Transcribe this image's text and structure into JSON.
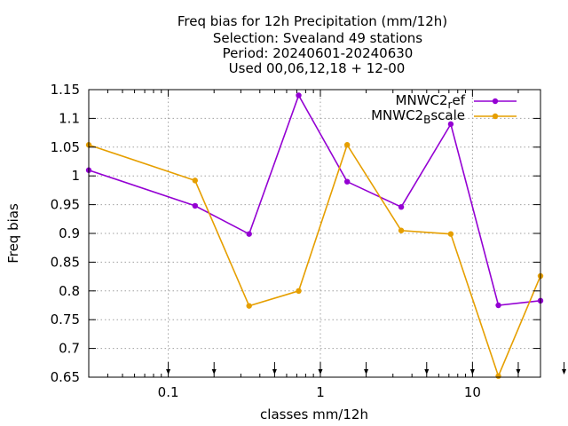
{
  "chart_data": {
    "type": "line",
    "title_lines": [
      "Freq bias  for 12h Precipitation (mm/12h)",
      "Selection: Svealand     49 stations",
      "Period: 20240601-20240630",
      "Used 00,06,12,18 + 12-00"
    ],
    "xlabel": "classes mm/12h",
    "ylabel": "Freq bias",
    "x_scale": "log",
    "xlim": [
      0.03,
      28
    ],
    "ylim": [
      0.65,
      1.15
    ],
    "x_ticks": [
      0.1,
      1,
      10
    ],
    "x_tick_labels": [
      "0.1",
      "1",
      "10"
    ],
    "y_ticks": [
      0.65,
      0.7,
      0.75,
      0.8,
      0.85,
      0.9,
      0.95,
      1,
      1.05,
      1.1,
      1.15
    ],
    "y_tick_labels": [
      "0.65",
      "0.7",
      "0.75",
      "0.8",
      "0.85",
      "0.9",
      "0.95",
      "1",
      "1.05",
      "1.1",
      "1.15"
    ],
    "grid": true,
    "legend_position": "top-right",
    "arrow_markers_x": [
      0.1,
      0.2,
      0.5,
      1,
      2,
      5,
      10,
      20,
      40
    ],
    "series": [
      {
        "name_main": "MNWC2",
        "name_sub": "r",
        "name_tail": "ef",
        "color": "#9400d3",
        "x": [
          0.03,
          0.15,
          0.34,
          0.72,
          1.5,
          3.4,
          7.2,
          14.8,
          28
        ],
        "y": [
          1.01,
          0.948,
          0.899,
          1.14,
          0.99,
          0.946,
          1.09,
          0.775,
          0.783
        ]
      },
      {
        "name_main": "MNWC2",
        "name_sub": "B",
        "name_tail": "scale",
        "color": "#e69f00",
        "x": [
          0.03,
          0.15,
          0.34,
          0.72,
          1.5,
          3.4,
          7.2,
          14.8,
          28
        ],
        "y": [
          1.054,
          0.992,
          0.774,
          0.8,
          1.054,
          0.905,
          0.899,
          0.652,
          0.826
        ]
      }
    ]
  }
}
